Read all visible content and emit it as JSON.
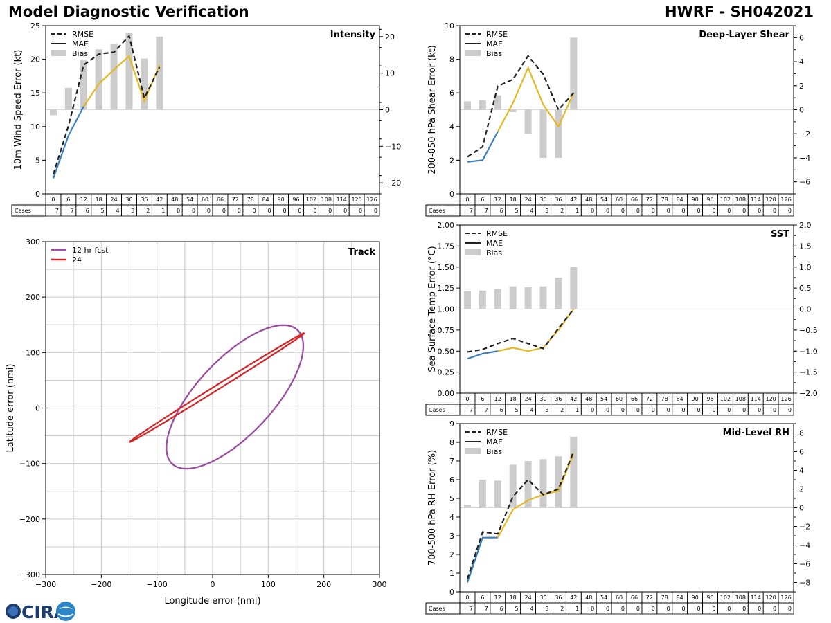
{
  "header": {
    "title": "Model Diagnostic Verification",
    "storm": "HWRF - SH042021"
  },
  "logo": {
    "text": "CIRA",
    "icon": "cira-logo-icon"
  },
  "colors": {
    "early": "#3a7fba",
    "late": "#e6b822",
    "rmse": "#222222",
    "bias": "#cccccc",
    "track12": "#9b4da0",
    "track24": "#d62728",
    "grid": "#d0d0d0"
  },
  "forecast_hours": [
    "0",
    "6",
    "12",
    "18",
    "24",
    "30",
    "36",
    "42",
    "48",
    "54",
    "60",
    "66",
    "72",
    "78",
    "84",
    "90",
    "96",
    "102",
    "108",
    "114",
    "120",
    "126"
  ],
  "cases": [
    "7",
    "7",
    "6",
    "5",
    "4",
    "3",
    "2",
    "1",
    "0",
    "0",
    "0",
    "0",
    "0",
    "0",
    "0",
    "0",
    "0",
    "0",
    "0",
    "0",
    "0",
    "0"
  ],
  "cases_label": "Cases",
  "legend_labels": {
    "rmse": "RMSE",
    "mae": "MAE",
    "bias": "Bias"
  },
  "chart_data": [
    {
      "type": "line",
      "id": "intensity",
      "title": "Intensity",
      "ylabel": "10m Wind Speed Error (kt)",
      "ylim": [
        0,
        26
      ],
      "yticks": [
        "0",
        "5",
        "10",
        "15",
        "20",
        "25"
      ],
      "y2lim": [
        -23,
        23
      ],
      "y2ticks": [
        "−20",
        "−10",
        "0",
        "10",
        "20"
      ],
      "x": [
        0,
        6,
        12,
        18,
        24,
        30,
        36,
        42
      ],
      "rmse": [
        3.0,
        10.5,
        19.9,
        21.6,
        21.9,
        24.4,
        14.8,
        19.6
      ],
      "mae": [
        2.4,
        9.0,
        13.5,
        17.0,
        19.2,
        21.3,
        14.3,
        19.9
      ],
      "bias": [
        -1.5,
        6.0,
        13.5,
        16.5,
        18.0,
        21.0,
        14.0,
        20.0
      ]
    },
    {
      "type": "line",
      "id": "shear",
      "title": "Deep-Layer Shear",
      "ylabel": "200-850 hPa Shear Error (kt)",
      "ylim": [
        0,
        10
      ],
      "yticks": [
        "0",
        "2",
        "4",
        "6",
        "8",
        "10"
      ],
      "y2lim": [
        -7,
        7
      ],
      "y2ticks": [
        "−6",
        "−4",
        "−2",
        "0",
        "2",
        "4",
        "6"
      ],
      "x": [
        0,
        6,
        12,
        18,
        24,
        30,
        36,
        42
      ],
      "rmse": [
        2.2,
        2.8,
        6.4,
        6.8,
        8.2,
        7.1,
        5.0,
        6.0
      ],
      "mae": [
        1.9,
        2.0,
        3.7,
        5.4,
        7.5,
        5.3,
        4.0,
        6.0
      ],
      "bias": [
        0.7,
        0.8,
        1.2,
        -0.2,
        -2.0,
        -4.0,
        -4.0,
        6.0
      ]
    },
    {
      "type": "line",
      "id": "sst",
      "title": "SST",
      "ylabel": "Sea Surface Temp Error (°C)",
      "ylim": [
        0,
        2
      ],
      "yticks": [
        "0.00",
        "0.25",
        "0.50",
        "0.75",
        "1.00",
        "1.25",
        "1.50",
        "1.75",
        "2.00"
      ],
      "y2lim": [
        -2,
        2
      ],
      "y2ticks": [
        "−2.0",
        "−1.5",
        "−1.0",
        "−0.5",
        "0.0",
        "0.5",
        "1.0",
        "1.5",
        "2.0"
      ],
      "x": [
        0,
        6,
        12,
        18,
        24,
        30,
        36,
        42
      ],
      "rmse": [
        0.49,
        0.52,
        0.59,
        0.65,
        0.59,
        0.53,
        0.77,
        1.0
      ],
      "mae": [
        0.41,
        0.47,
        0.5,
        0.54,
        0.5,
        0.54,
        0.75,
        1.0
      ],
      "bias": [
        0.42,
        0.44,
        0.48,
        0.54,
        0.52,
        0.54,
        0.75,
        1.0
      ]
    },
    {
      "type": "line",
      "id": "rh",
      "title": "Mid-Level RH",
      "ylabel": "700-500 hPa RH Error (%)",
      "ylim": [
        0,
        9
      ],
      "yticks": [
        "0",
        "1",
        "2",
        "3",
        "4",
        "5",
        "6",
        "7",
        "8",
        "9"
      ],
      "y2lim": [
        -9,
        9
      ],
      "y2ticks": [
        "−8",
        "−6",
        "−4",
        "−2",
        "0",
        "2",
        "4",
        "6",
        "8"
      ],
      "x": [
        0,
        6,
        12,
        18,
        24,
        30,
        36,
        42
      ],
      "rmse": [
        0.7,
        3.2,
        3.1,
        5.1,
        6.0,
        5.2,
        5.5,
        7.5
      ],
      "mae": [
        0.5,
        2.9,
        2.9,
        4.4,
        4.9,
        5.2,
        5.4,
        7.4
      ],
      "bias": [
        0.3,
        3.0,
        2.9,
        4.6,
        5.0,
        5.2,
        5.5,
        7.6
      ]
    },
    {
      "type": "scatter",
      "id": "track",
      "title": "Track",
      "xlabel": "Longitude error (nmi)",
      "ylabel": "Latitude error (nmi)",
      "xlim": [
        -300,
        300
      ],
      "ylim": [
        -300,
        300
      ],
      "ticks": [
        "−300",
        "−200",
        "−100",
        "0",
        "100",
        "200",
        "300"
      ],
      "series": [
        {
          "name": "12 hr fcst",
          "cx": 40,
          "cy": 20,
          "a": 165,
          "b": 68,
          "angle_deg": 47
        },
        {
          "name": "24",
          "cx": 8,
          "cy": 37,
          "a": 185,
          "b": 4,
          "angle_deg": 32
        }
      ]
    }
  ]
}
